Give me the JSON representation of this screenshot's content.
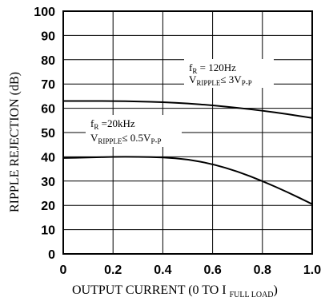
{
  "chart_data": {
    "type": "line",
    "xlabel": "OUTPUT CURRENT (0 TO I",
    "xlabel_sub": "FULL LOAD",
    "xlabel_close": ")",
    "ylabel": "RIPPLE REJECTION (dB)",
    "xlim": [
      0,
      1.0
    ],
    "ylim": [
      0,
      100
    ],
    "x_ticks": [
      "0",
      "0.2",
      "0.4",
      "0.6",
      "0.8",
      "1.0"
    ],
    "y_ticks": [
      "0",
      "10",
      "20",
      "30",
      "40",
      "50",
      "60",
      "70",
      "80",
      "90",
      "100"
    ],
    "x_tick_values": [
      0,
      0.2,
      0.4,
      0.6,
      0.8,
      1.0
    ],
    "y_tick_values": [
      0,
      10,
      20,
      30,
      40,
      50,
      60,
      70,
      80,
      90,
      100
    ],
    "grid": true,
    "series": [
      {
        "x": [
          0,
          0.1,
          0.2,
          0.3,
          0.4,
          0.5,
          0.6,
          0.7,
          0.8,
          0.9,
          1.0
        ],
        "y": [
          63,
          63,
          63,
          62.8,
          62.5,
          62,
          61.2,
          60.2,
          59,
          57.6,
          56
        ],
        "annotation": {
          "line1_main": "f",
          "line1_sub": "R",
          "line1_rest": " = 120Hz",
          "line2_main": "V",
          "line2_sub": "RIPPLE",
          "line2_rest": "≤ 3V",
          "line2_sub2": "P-P"
        }
      },
      {
        "x": [
          0,
          0.1,
          0.2,
          0.3,
          0.4,
          0.5,
          0.6,
          0.7,
          0.8,
          0.9,
          1.0
        ],
        "y": [
          39.5,
          39.7,
          40,
          40,
          39.8,
          39,
          37,
          34,
          30,
          25.5,
          20.5
        ],
        "annotation": {
          "line1_main": "f",
          "line1_sub": "R",
          "line1_rest": " =20kHz",
          "line2_main": "V",
          "line2_sub": "RIPPLE",
          "line2_rest": "≤ 0.5V",
          "line2_sub2": "P-P"
        }
      }
    ]
  }
}
